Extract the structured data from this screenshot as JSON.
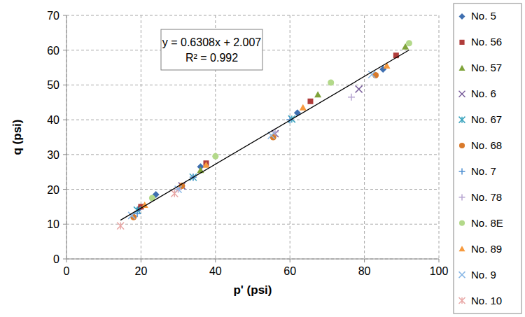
{
  "chart_data": {
    "type": "scatter",
    "x_label": "p' (psi)",
    "y_label": "q (psi)",
    "annotations": [
      "y = 0.6308x + 2.007",
      "R² = 0.992"
    ],
    "xlim": [
      0,
      100
    ],
    "ylim": [
      0,
      70
    ],
    "xticks": [
      0,
      20,
      40,
      60,
      80,
      100
    ],
    "yticks": [
      0,
      10,
      20,
      30,
      40,
      50,
      60,
      70
    ],
    "grid": true,
    "legend": "right",
    "trendline": {
      "color": "#000000",
      "x": [
        14.5,
        92
      ],
      "values": [
        11.15,
        60.04
      ]
    },
    "series": [
      {
        "name": "No. 5",
        "color": "#3f6fb0",
        "marker": "diamond",
        "x": [
          19.5,
          24,
          36,
          62,
          85
        ],
        "values": [
          14.5,
          18.5,
          26.5,
          42,
          54.5
        ]
      },
      {
        "name": "No. 56",
        "color": "#b03c3a",
        "marker": "square",
        "x": [
          20,
          37.5,
          65.5,
          88.5
        ],
        "values": [
          15,
          27.5,
          45.3,
          58.5
        ]
      },
      {
        "name": "No. 57",
        "color": "#7fa33a",
        "marker": "triangle",
        "x": [
          36,
          67.5,
          91
        ],
        "values": [
          25.5,
          47.2,
          61
        ]
      },
      {
        "name": "No. 6",
        "color": "#7a5f9c",
        "marker": "x",
        "x": [
          31,
          56,
          78.5
        ],
        "values": [
          21,
          36,
          48.8
        ]
      },
      {
        "name": "No. 67",
        "color": "#3ba4be",
        "marker": "asterisk",
        "x": [
          19,
          34,
          60.5
        ],
        "values": [
          14,
          23.5,
          40.2
        ]
      },
      {
        "name": "No. 68",
        "color": "#d97a2b",
        "marker": "circle",
        "x": [
          18,
          31,
          55.5,
          83
        ],
        "values": [
          12,
          21,
          35,
          52.8
        ]
      },
      {
        "name": "No. 7",
        "color": "#4f8fd0",
        "marker": "plus",
        "x": [
          19,
          34,
          60
        ],
        "values": [
          13,
          23.5,
          40
        ]
      },
      {
        "name": "No. 78",
        "color": "#b7a6d2",
        "marker": "plus",
        "x": [
          30,
          56,
          76.5
        ],
        "values": [
          20,
          36.5,
          46.5
        ]
      },
      {
        "name": "No. 8E",
        "color": "#b3d98a",
        "marker": "circle",
        "x": [
          23,
          40,
          71,
          92
        ],
        "values": [
          17.5,
          29.5,
          50.7,
          62
        ]
      },
      {
        "name": "No. 89",
        "color": "#f79a3e",
        "marker": "triangle",
        "x": [
          21,
          37.5,
          63.5,
          86
        ],
        "values": [
          15.5,
          27,
          43.5,
          55.5
        ]
      },
      {
        "name": "No. 9",
        "color": "#8ab8e6",
        "marker": "x",
        "x": [
          17.5,
          30,
          55,
          82
        ],
        "values": [
          12.5,
          20,
          35.5,
          53
        ]
      },
      {
        "name": "No. 10",
        "color": "#e8a6a4",
        "marker": "asterisk",
        "x": [
          14.5,
          29
        ],
        "values": [
          9.5,
          18.8
        ]
      }
    ]
  }
}
